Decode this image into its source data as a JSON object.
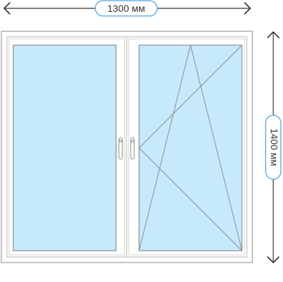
{
  "dimensions": {
    "width_label": "1300 мм",
    "height_label": "1400 мм"
  },
  "colors": {
    "glass": "#c6e9fb",
    "frame": "#ffffff",
    "outline": "#7a7a7a",
    "badge_border": "#4da3e0",
    "arrow": "#333333"
  },
  "sashes": [
    {
      "name": "left",
      "opening": "fixed"
    },
    {
      "name": "right",
      "opening": "tilt-and-turn",
      "hinge_side": "right"
    }
  ],
  "handles": 2
}
